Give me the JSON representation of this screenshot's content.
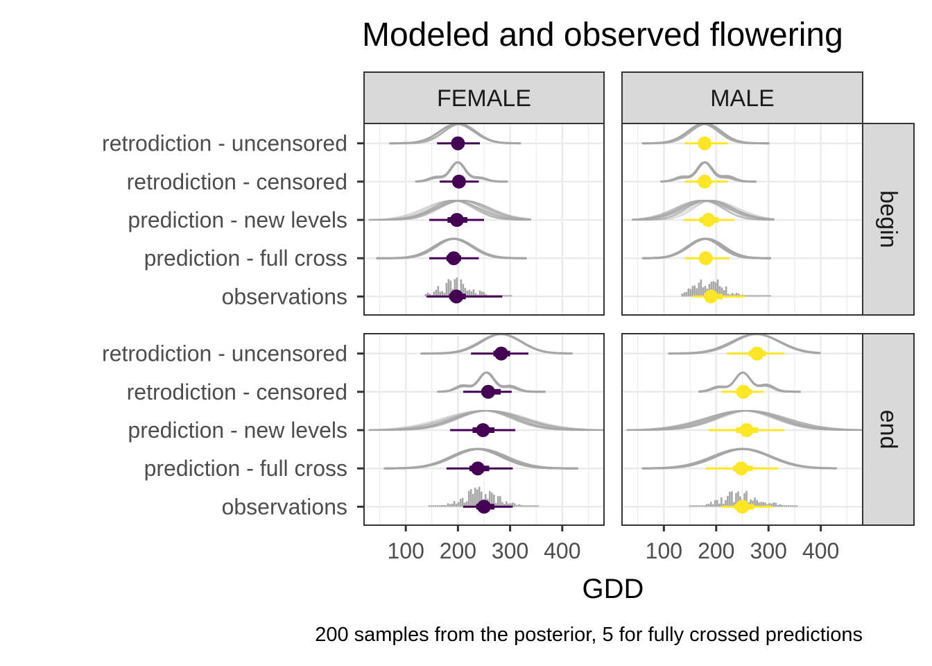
{
  "title": "Modeled and observed flowering",
  "caption": "200 samples from the posterior, 5 for fully crossed predictions",
  "colors": {
    "FEMALE": "#440154",
    "MALE": "#fde725",
    "density": "#a6a6a6",
    "panel_border": "#333333",
    "strip_fill": "#d9d9d9",
    "grid": "#ebebeb"
  },
  "chart_data": {
    "type": "density-interval",
    "xlabel": "GDD",
    "ylabel": "",
    "xlim": [
      20,
      480
    ],
    "x_ticks": [
      100,
      200,
      300,
      400
    ],
    "grid": true,
    "columns": [
      "FEMALE",
      "MALE"
    ],
    "rows": [
      "begin",
      "end"
    ],
    "categories": [
      "retrodiction - uncensored",
      "retrodiction - censored",
      "prediction - new levels",
      "prediction - full cross",
      "observations"
    ],
    "facets": [
      {
        "sex": "FEMALE",
        "event": "begin",
        "series": [
          {
            "category": "retrodiction - uncensored",
            "median": 200,
            "inner": [
              188,
              212
            ],
            "outer": [
              160,
              242
            ],
            "range": [
              70,
              320
            ],
            "mode": 200,
            "spread": 32
          },
          {
            "category": "retrodiction - censored",
            "median": 202,
            "inner": [
              190,
              214
            ],
            "outer": [
              165,
              240
            ],
            "range": [
              120,
              295
            ],
            "mode": 200,
            "spread": 28
          },
          {
            "category": "prediction - new levels",
            "median": 198,
            "inner": [
              180,
              218
            ],
            "outer": [
              145,
              250
            ],
            "range": [
              30,
              340
            ],
            "mode": 200,
            "spread": 45
          },
          {
            "category": "prediction - full cross",
            "median": 192,
            "inner": [
              178,
              206
            ],
            "outer": [
              145,
              240
            ],
            "range": [
              45,
              330
            ],
            "mode": 192,
            "spread": 35
          },
          {
            "category": "observations",
            "median": 197,
            "inner": [
              183,
              215
            ],
            "outer": [
              140,
              285
            ],
            "range": [
              138,
              305
            ],
            "mode": 197,
            "spread": 30
          }
        ]
      },
      {
        "sex": "MALE",
        "event": "begin",
        "series": [
          {
            "category": "retrodiction - uncensored",
            "median": 178,
            "inner": [
              170,
              190
            ],
            "outer": [
              140,
              222
            ],
            "range": [
              60,
              300
            ],
            "mode": 178,
            "spread": 30
          },
          {
            "category": "retrodiction - censored",
            "median": 178,
            "inner": [
              170,
              188
            ],
            "outer": [
              140,
              222
            ],
            "range": [
              95,
              275
            ],
            "mode": 178,
            "spread": 28
          },
          {
            "category": "prediction - new levels",
            "median": 185,
            "inner": [
              168,
              205
            ],
            "outer": [
              138,
              235
            ],
            "range": [
              40,
              310
            ],
            "mode": 182,
            "spread": 42
          },
          {
            "category": "prediction - full cross",
            "median": 180,
            "inner": [
              170,
              192
            ],
            "outer": [
              140,
              225
            ],
            "range": [
              60,
              305
            ],
            "mode": 180,
            "spread": 32
          },
          {
            "category": "observations",
            "median": 190,
            "inner": [
              178,
              212
            ],
            "outer": [
              155,
              255
            ],
            "range": [
              135,
              305
            ],
            "mode": 185,
            "spread": 30
          }
        ]
      },
      {
        "sex": "FEMALE",
        "event": "end",
        "series": [
          {
            "category": "retrodiction - uncensored",
            "median": 283,
            "inner": [
              268,
              300
            ],
            "outer": [
              225,
              335
            ],
            "range": [
              130,
              420
            ],
            "mode": 285,
            "spread": 38
          },
          {
            "category": "retrodiction - censored",
            "median": 258,
            "inner": [
              245,
              282
            ],
            "outer": [
              210,
              303
            ],
            "range": [
              162,
              368
            ],
            "mode": 255,
            "spread": 32
          },
          {
            "category": "prediction - new levels",
            "median": 248,
            "inner": [
              228,
              270
            ],
            "outer": [
              185,
              310
            ],
            "range": [
              30,
              480
            ],
            "mode": 250,
            "spread": 65
          },
          {
            "category": "prediction - full cross",
            "median": 238,
            "inner": [
              222,
              260
            ],
            "outer": [
              178,
              305
            ],
            "range": [
              60,
              430
            ],
            "mode": 238,
            "spread": 50
          },
          {
            "category": "observations",
            "median": 250,
            "inner": [
              235,
              270
            ],
            "outer": [
              210,
              305
            ],
            "range": [
              145,
              355
            ],
            "mode": 245,
            "spread": 35
          }
        ]
      },
      {
        "sex": "MALE",
        "event": "end",
        "series": [
          {
            "category": "retrodiction - uncensored",
            "median": 278,
            "inner": [
              262,
              295
            ],
            "outer": [
              220,
              330
            ],
            "range": [
              110,
              400
            ],
            "mode": 278,
            "spread": 45
          },
          {
            "category": "retrodiction - censored",
            "median": 252,
            "inner": [
              238,
              268
            ],
            "outer": [
              210,
              290
            ],
            "range": [
              168,
              362
            ],
            "mode": 250,
            "spread": 32
          },
          {
            "category": "prediction - new levels",
            "median": 258,
            "inner": [
              238,
              280
            ],
            "outer": [
              185,
              330
            ],
            "range": [
              30,
              480
            ],
            "mode": 255,
            "spread": 65
          },
          {
            "category": "prediction - full cross",
            "median": 248,
            "inner": [
              232,
              270
            ],
            "outer": [
              180,
              318
            ],
            "range": [
              60,
              430
            ],
            "mode": 250,
            "spread": 55
          },
          {
            "category": "observations",
            "median": 250,
            "inner": [
              235,
              272
            ],
            "outer": [
              210,
              308
            ],
            "range": [
              150,
              355
            ],
            "mode": 250,
            "spread": 35
          }
        ]
      }
    ]
  }
}
